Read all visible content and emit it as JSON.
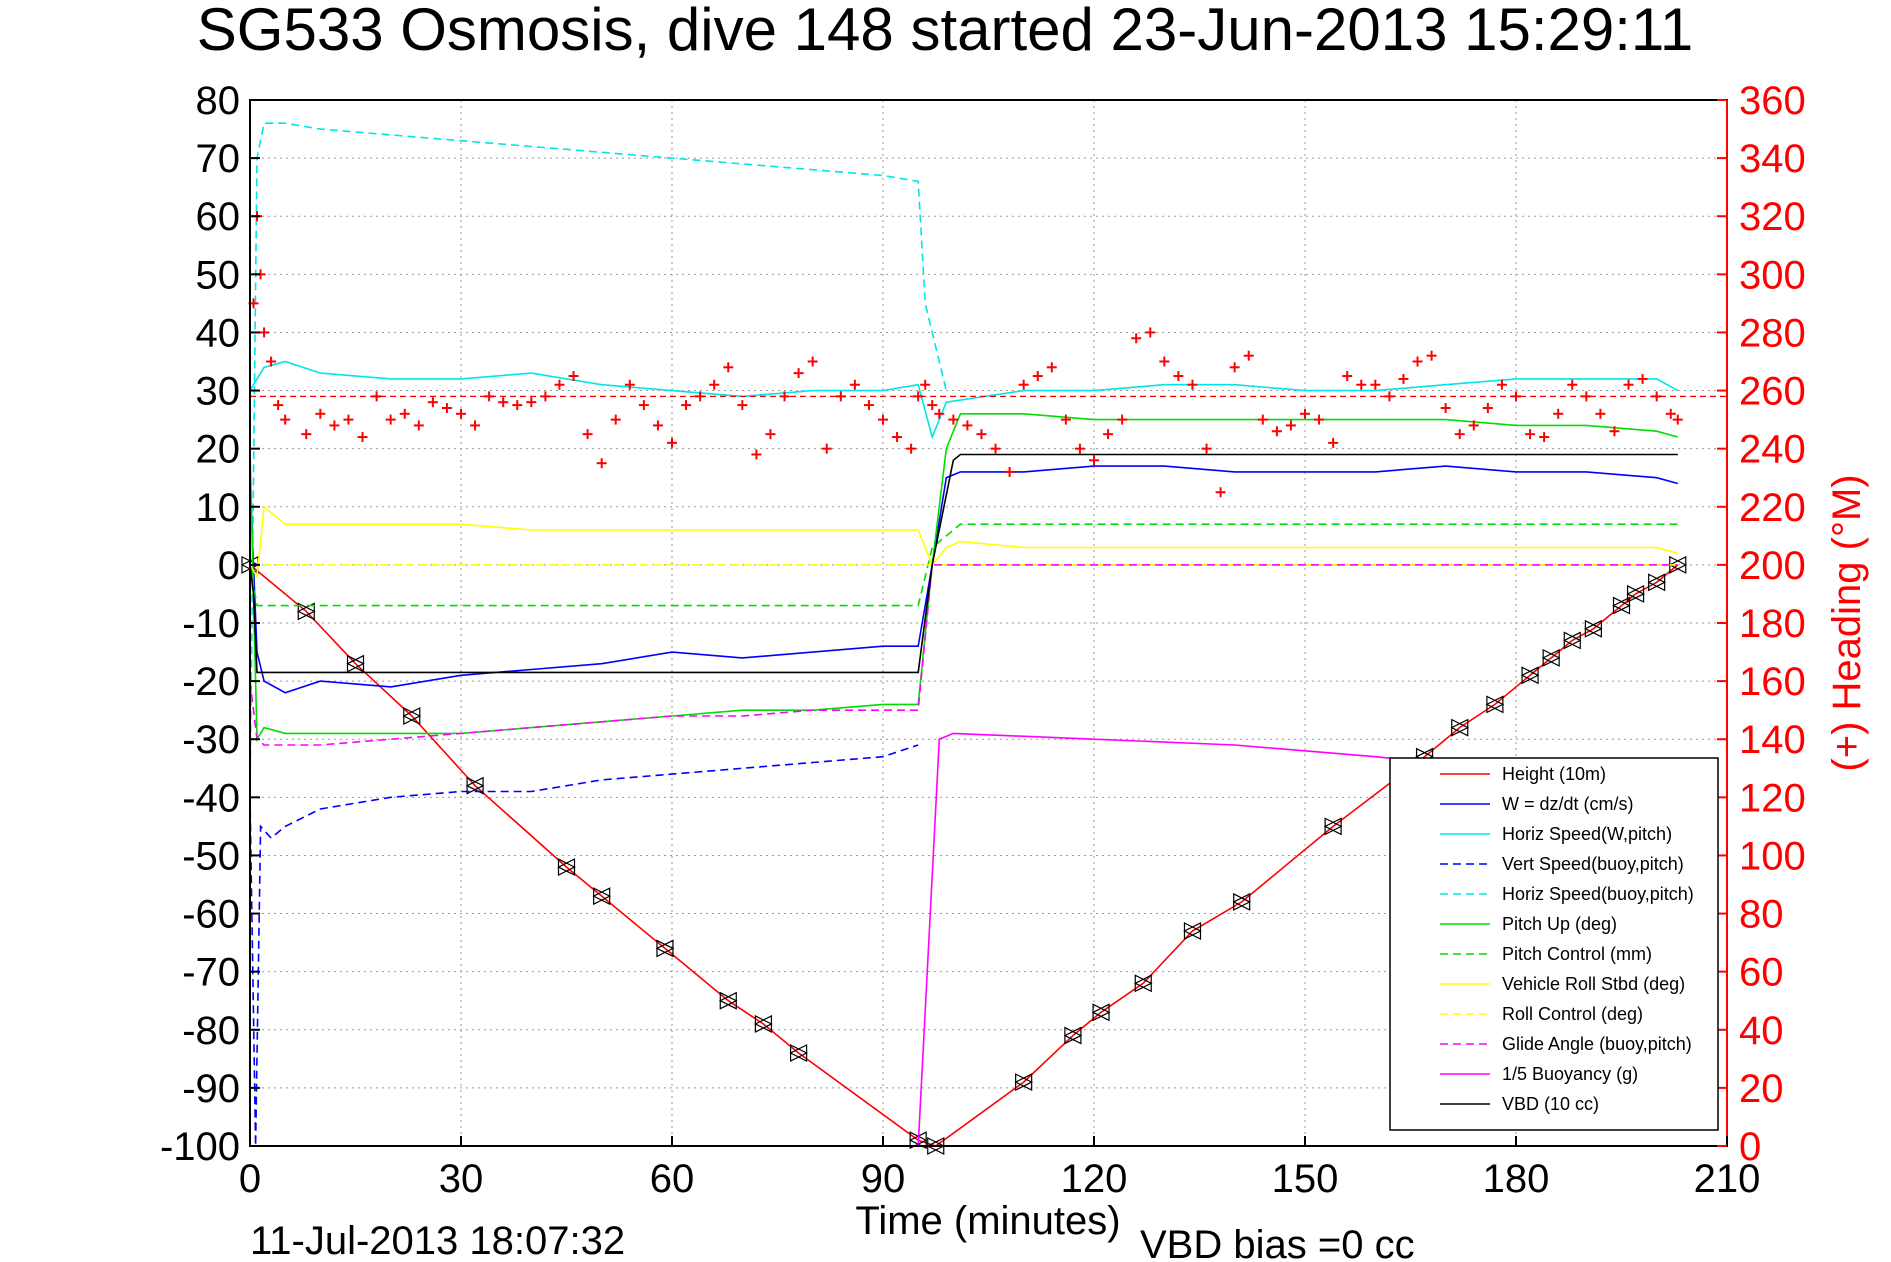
{
  "chart_data": {
    "type": "line",
    "title": "SG533 Osmosis, dive 148 started 23-Jun-2013 15:29:11",
    "xlabel": "Time (minutes)",
    "ylabel_right": "(+) Heading (°M)",
    "xlim": [
      0,
      210
    ],
    "ylim_left": [
      -100,
      80
    ],
    "ylim_right": [
      0,
      360
    ],
    "xticks": [
      "0",
      "30",
      "60",
      "90",
      "120",
      "150",
      "180",
      "210"
    ],
    "yticks_left": [
      "80",
      "70",
      "60",
      "50",
      "40",
      "30",
      "20",
      "10",
      "0",
      "-10",
      "-20",
      "-30",
      "-40",
      "-50",
      "-60",
      "-70",
      "-80",
      "-90",
      "-100"
    ],
    "yticks_right": [
      "360",
      "340",
      "320",
      "300",
      "280",
      "260",
      "240",
      "220",
      "200",
      "180",
      "160",
      "140",
      "120",
      "100",
      "80",
      "60",
      "40",
      "20",
      "0"
    ],
    "grid": true,
    "legend_position": "bottom-right",
    "footer_date": "11-Jul-2013 18:07:32",
    "footer_bias": "VBD bias =0 cc",
    "series": [
      {
        "name": "Height (10m)",
        "color": "#ff0000",
        "style": "solid",
        "marker": "triangle",
        "x": [
          0,
          8,
          15,
          23,
          32,
          45,
          50,
          59,
          68,
          73,
          78,
          95,
          97.5,
          110,
          117,
          121,
          127,
          134,
          141,
          154,
          167,
          172,
          177,
          182,
          185,
          188,
          191,
          195,
          197,
          200,
          203
        ],
        "y": [
          0,
          -8,
          -17,
          -26,
          -38,
          -52,
          -57,
          -66,
          -75,
          -79,
          -84,
          -99,
          -100,
          -89,
          -81,
          -77,
          -72,
          -63,
          -58,
          -45,
          -33,
          -28,
          -24,
          -19,
          -16,
          -13,
          -11,
          -7,
          -5,
          -3,
          0
        ]
      },
      {
        "name": "W = dz/dt (cm/s)",
        "color": "#0000ff",
        "style": "solid",
        "x": [
          0,
          1,
          2,
          5,
          10,
          20,
          30,
          40,
          50,
          60,
          70,
          80,
          90,
          95,
          97,
          99,
          101,
          110,
          120,
          130,
          140,
          150,
          160,
          170,
          180,
          190,
          200,
          203
        ],
        "y": [
          15,
          -15,
          -20,
          -22,
          -20,
          -21,
          -19,
          -18,
          -17,
          -15,
          -16,
          -15,
          -14,
          -14,
          0,
          15,
          16,
          16,
          17,
          17,
          16,
          16,
          16,
          17,
          16,
          16,
          15,
          14
        ]
      },
      {
        "name": "Horiz Speed(W,pitch)",
        "color": "#00e5e5",
        "style": "solid",
        "x": [
          0,
          2,
          5,
          10,
          20,
          30,
          40,
          50,
          60,
          70,
          80,
          90,
          95,
          97,
          99,
          110,
          120,
          130,
          140,
          150,
          160,
          170,
          180,
          190,
          200,
          203
        ],
        "y": [
          30,
          34,
          35,
          33,
          32,
          32,
          33,
          31,
          30,
          29,
          30,
          30,
          31,
          22,
          28,
          30,
          30,
          31,
          31,
          30,
          30,
          31,
          32,
          32,
          32,
          30
        ]
      },
      {
        "name": "Vert Speed(buoy,pitch)",
        "color": "#0000ff",
        "style": "dashed",
        "x": [
          0,
          0.8,
          1.5,
          3,
          5,
          10,
          20,
          30,
          40,
          50,
          60,
          70,
          80,
          90,
          95
        ],
        "y": [
          -40,
          -100,
          -45,
          -47,
          -45,
          -42,
          -40,
          -39,
          -39,
          -37,
          -36,
          -35,
          -34,
          -33,
          -31
        ]
      },
      {
        "name": "Horiz Speed(buoy,pitch)",
        "color": "#00e5e5",
        "style": "dashed",
        "x": [
          0,
          1,
          2,
          5,
          10,
          20,
          30,
          40,
          50,
          60,
          70,
          80,
          90,
          95,
          96,
          97,
          99
        ],
        "y": [
          -40,
          70,
          76,
          76,
          75,
          74,
          73,
          72,
          71,
          70,
          69,
          68,
          67,
          66,
          45,
          40,
          30
        ]
      },
      {
        "name": "Pitch Up (deg)",
        "color": "#00dd00",
        "style": "solid",
        "x": [
          0,
          1,
          2,
          5,
          10,
          20,
          30,
          40,
          50,
          60,
          70,
          80,
          90,
          95,
          97,
          99,
          101,
          110,
          120,
          130,
          140,
          150,
          160,
          170,
          180,
          190,
          200,
          203
        ],
        "y": [
          20,
          -30,
          -28,
          -29,
          -29,
          -29,
          -29,
          -28,
          -27,
          -26,
          -25,
          -25,
          -24,
          -24,
          0,
          20,
          26,
          26,
          25,
          25,
          25,
          25,
          25,
          25,
          24,
          24,
          23,
          22
        ]
      },
      {
        "name": "Pitch Control (mm)",
        "color": "#00dd00",
        "style": "dashed",
        "x": [
          0,
          1,
          2,
          95,
          97,
          101,
          203
        ],
        "y": [
          0,
          -7,
          -7,
          -7,
          3,
          7,
          7
        ]
      },
      {
        "name": "Vehicle Roll Stbd (deg)",
        "color": "#ffff00",
        "style": "solid",
        "x": [
          0,
          1,
          2,
          5,
          10,
          20,
          30,
          40,
          50,
          60,
          70,
          80,
          90,
          95,
          97,
          99,
          101,
          110,
          120,
          130,
          140,
          150,
          160,
          170,
          180,
          190,
          200,
          203
        ],
        "y": [
          0,
          -2,
          10,
          7,
          7,
          7,
          7,
          6,
          6,
          6,
          6,
          6,
          6,
          6,
          0,
          3,
          4,
          3,
          3,
          3,
          3,
          3,
          3,
          3,
          3,
          3,
          3,
          2
        ]
      },
      {
        "name": "Roll Control (deg)",
        "color": "#ffff00",
        "style": "dashed",
        "x": [
          0,
          2,
          95,
          99,
          203
        ],
        "y": [
          0,
          0,
          0,
          0,
          0
        ]
      },
      {
        "name": "Glide Angle (buoy,pitch)",
        "color": "#ff00ff",
        "style": "dashed",
        "x": [
          0,
          1,
          2,
          5,
          10,
          20,
          30,
          40,
          50,
          60,
          70,
          80,
          90,
          95,
          97,
          99,
          203
        ],
        "y": [
          -20,
          -30,
          -31,
          -31,
          -31,
          -30,
          -29,
          -28,
          -27,
          -26,
          -26,
          -25,
          -25,
          -25,
          0,
          0,
          0
        ]
      },
      {
        "name": "1/5 Buoyancy (g)",
        "color": "#ff00ff",
        "style": "solid",
        "x": [
          95,
          98,
          100,
          120,
          140,
          160,
          168
        ],
        "y": [
          -100,
          -30,
          -29,
          -30,
          -31,
          -33,
          -34
        ]
      },
      {
        "name": "VBD (10 cc)",
        "color": "#000000",
        "style": "solid",
        "x": [
          0,
          0.5,
          1,
          95,
          97,
          100,
          101,
          203
        ],
        "y": [
          0,
          -5,
          -18.5,
          -18.5,
          0,
          18,
          19,
          19
        ]
      }
    ],
    "heading_series": {
      "name": "Heading",
      "color": "#ff0000",
      "marker": "+",
      "reference_line": 258,
      "x": [
        0.5,
        1,
        1.5,
        2,
        3,
        4,
        5,
        8,
        10,
        12,
        14,
        16,
        18,
        20,
        22,
        24,
        26,
        28,
        30,
        32,
        34,
        36,
        38,
        40,
        42,
        44,
        46,
        48,
        50,
        52,
        54,
        56,
        58,
        60,
        62,
        64,
        66,
        68,
        70,
        72,
        74,
        76,
        78,
        80,
        82,
        84,
        86,
        88,
        90,
        92,
        94,
        95,
        96,
        97,
        98,
        100,
        102,
        104,
        106,
        108,
        110,
        112,
        114,
        116,
        118,
        120,
        122,
        124,
        126,
        128,
        130,
        132,
        134,
        136,
        138,
        140,
        142,
        144,
        146,
        148,
        150,
        152,
        154,
        156,
        158,
        160,
        162,
        164,
        166,
        168,
        170,
        172,
        174,
        176,
        178,
        180,
        182,
        184,
        186,
        188,
        190,
        192,
        194,
        196,
        198,
        200,
        202,
        203
      ],
      "y": [
        290,
        320,
        300,
        280,
        270,
        255,
        250,
        245,
        252,
        248,
        250,
        244,
        258,
        250,
        252,
        248,
        256,
        254,
        252,
        248,
        258,
        256,
        255,
        256,
        258,
        262,
        265,
        245,
        235,
        250,
        262,
        255,
        248,
        242,
        255,
        258,
        262,
        268,
        255,
        238,
        245,
        258,
        266,
        270,
        240,
        258,
        262,
        255,
        250,
        244,
        240,
        258,
        262,
        255,
        252,
        250,
        248,
        245,
        240,
        232,
        262,
        265,
        268,
        250,
        240,
        236,
        245,
        250,
        278,
        280,
        270,
        265,
        262,
        240,
        225,
        268,
        272,
        250,
        246,
        248,
        252,
        250,
        242,
        265,
        262,
        262,
        258,
        264,
        270,
        272,
        254,
        245,
        248,
        254,
        262,
        258,
        245,
        244,
        252,
        262,
        258,
        252,
        246,
        262,
        264,
        258,
        252,
        250
      ]
    }
  }
}
